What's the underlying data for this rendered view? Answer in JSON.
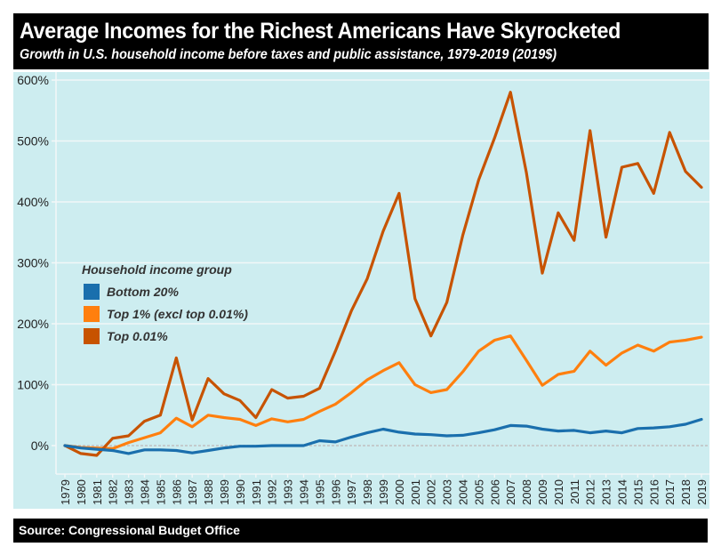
{
  "header": {
    "title": "Average Incomes for the Richest Americans Have Skyrocketed",
    "subtitle": "Growth in U.S. household income before taxes and public assistance, 1979-2019 (2019$)"
  },
  "footer": {
    "source": "Source: Congressional Budget Office"
  },
  "colors": {
    "panel_bg": "#cdedf0",
    "bottom20": "#1a6fad",
    "top1": "#ff7f0e",
    "top001": "#c75300"
  },
  "chart_data": {
    "type": "line",
    "title": "Average Incomes for the Richest Americans Have Skyrocketed",
    "subtitle": "Growth in U.S. household income before taxes and public assistance, 1979-2019 (2019$)",
    "xlabel": "",
    "ylabel": "",
    "ylim": [
      -55,
      600
    ],
    "yticks": [
      0,
      100,
      200,
      300,
      400,
      500,
      600
    ],
    "ytick_labels": [
      "0%",
      "100%",
      "200%",
      "300%",
      "400%",
      "500%",
      "600%"
    ],
    "grid": true,
    "legend_title": "Household income group",
    "legend_position": "center-left",
    "x": [
      "1979",
      "1980",
      "1981",
      "1982",
      "1983",
      "1984",
      "1985",
      "1986",
      "1987",
      "1988",
      "1989",
      "1990",
      "1991",
      "1992",
      "1993",
      "1994",
      "1995",
      "1996",
      "1997",
      "1998",
      "1999",
      "2000",
      "2001",
      "2002",
      "2003",
      "2004",
      "2005",
      "2006",
      "2007",
      "2008",
      "2009",
      "2010",
      "2011",
      "2012",
      "2013",
      "2014",
      "2015",
      "2016",
      "2017",
      "2018",
      "2019"
    ],
    "series": [
      {
        "name": "Bottom 20%",
        "color": "#1a6fad",
        "values": [
          0,
          -4,
          -6,
          -8,
          -13,
          -7,
          -7,
          -8,
          -12,
          -8,
          -4,
          -1,
          -1,
          0,
          0,
          0,
          8,
          6,
          14,
          21,
          27,
          22,
          19,
          18,
          16,
          17,
          21,
          26,
          33,
          32,
          27,
          24,
          25,
          21,
          24,
          21,
          28,
          29,
          31,
          35,
          43
        ]
      },
      {
        "name": "Top 1% (excl top 0.01%)",
        "color": "#ff7f0e",
        "values": [
          0,
          -3,
          -4,
          -5,
          5,
          13,
          21,
          45,
          31,
          50,
          46,
          43,
          33,
          44,
          39,
          43,
          56,
          68,
          87,
          108,
          123,
          136,
          100,
          87,
          92,
          121,
          155,
          173,
          180,
          140,
          99,
          117,
          122,
          155,
          132,
          152,
          165,
          155,
          170,
          173,
          178
        ]
      },
      {
        "name": "Top 0.01%",
        "color": "#c75300",
        "values": [
          0,
          -13,
          -16,
          12,
          16,
          40,
          50,
          144,
          42,
          110,
          85,
          74,
          46,
          92,
          78,
          81,
          94,
          155,
          221,
          274,
          352,
          414,
          241,
          180,
          235,
          345,
          436,
          505,
          580,
          448,
          283,
          382,
          337,
          517,
          342,
          457,
          463,
          414,
          514,
          450,
          424
        ]
      }
    ]
  }
}
